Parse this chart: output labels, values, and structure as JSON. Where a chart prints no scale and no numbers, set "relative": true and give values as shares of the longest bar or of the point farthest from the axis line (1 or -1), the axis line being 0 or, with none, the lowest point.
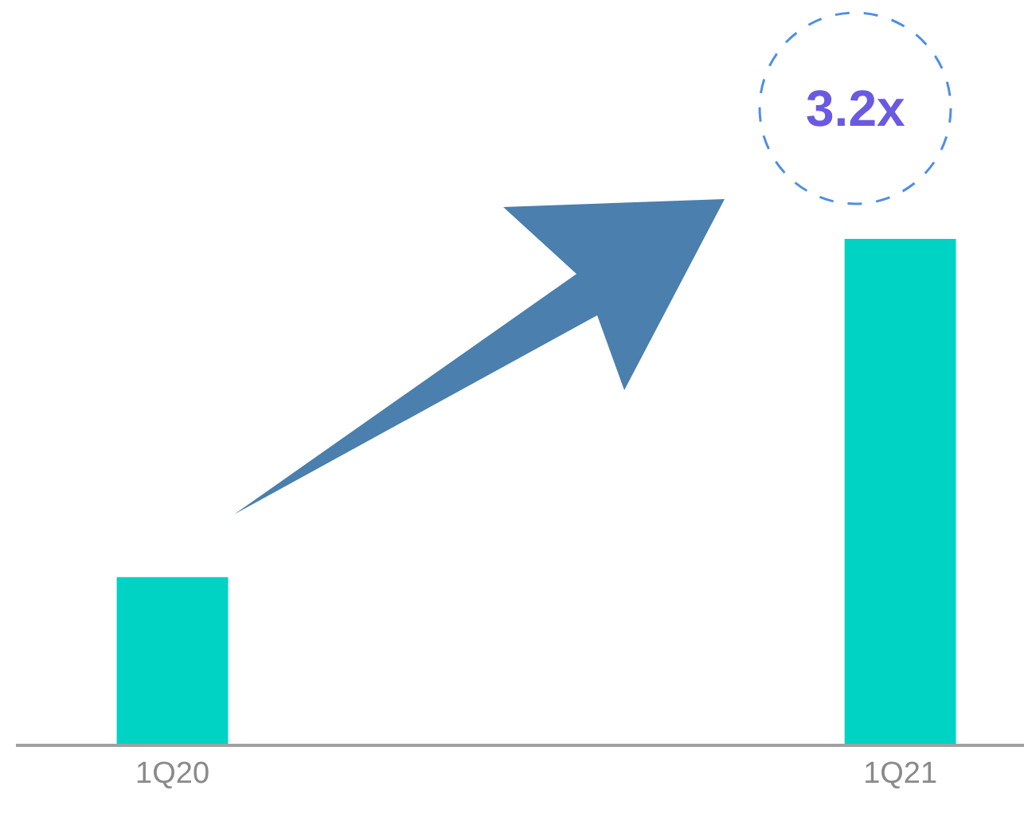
{
  "chart_data": {
    "type": "bar",
    "relative": true,
    "categories": [
      "1Q20",
      "1Q21"
    ],
    "series": [
      {
        "color": "#00d2c3",
        "values": [
          0.33,
          1
        ]
      }
    ],
    "annotations": [
      "3.2x"
    ]
  }
}
